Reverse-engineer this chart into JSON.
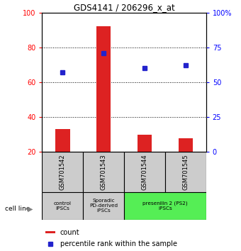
{
  "title": "GDS4141 / 206296_x_at",
  "samples": [
    "GSM701542",
    "GSM701543",
    "GSM701544",
    "GSM701545"
  ],
  "counts": [
    33,
    92,
    30,
    28
  ],
  "percentile_ranks": [
    57,
    71,
    60,
    62
  ],
  "y_min": 20,
  "y_max": 100,
  "y_left_ticks": [
    20,
    40,
    60,
    80,
    100
  ],
  "y_right_ticks": [
    0,
    25,
    50,
    75,
    100
  ],
  "bar_color": "#dd2222",
  "dot_color": "#2222cc",
  "bar_width": 0.35,
  "cell_line_labels": [
    "control\nIPSCs",
    "Sporadic\nPD-derived\niPSCs",
    "presenilin 2 (PS2)\niPSCs"
  ],
  "cell_line_spans": [
    [
      0,
      1
    ],
    [
      1,
      2
    ],
    [
      2,
      4
    ]
  ],
  "cell_line_colors": [
    "#cccccc",
    "#cccccc",
    "#55ee55"
  ],
  "sample_box_color": "#cccccc",
  "legend_count_label": "count",
  "legend_pct_label": "percentile rank within the sample"
}
